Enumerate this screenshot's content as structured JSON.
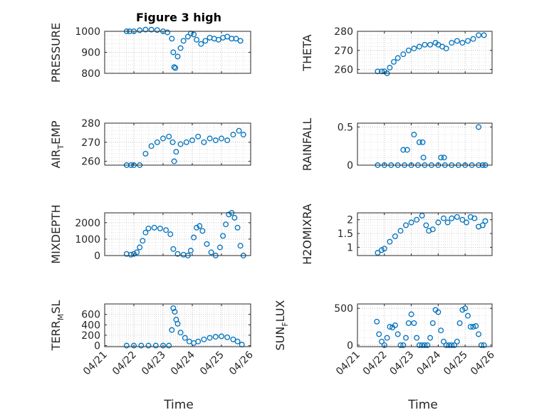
{
  "figure": {
    "title": "Figure 3 high",
    "marker_color": "#0072bd"
  },
  "chart_data": [
    {
      "type": "scatter",
      "ylabel": "PRESSURE",
      "ylim": [
        800,
        1000
      ],
      "yticks": [
        800,
        900,
        1000
      ],
      "ytick_labels": [
        "800",
        "900",
        "1000"
      ],
      "x": [
        21.75,
        21.85,
        22.0,
        22.2,
        22.4,
        22.6,
        22.8,
        23.0,
        23.15,
        23.3,
        23.35,
        23.38,
        23.42,
        23.5,
        23.6,
        23.7,
        23.85,
        23.95,
        24.05,
        24.15,
        24.3,
        24.45,
        24.6,
        24.75,
        24.9,
        25.05,
        25.2,
        25.35,
        25.5,
        25.65
      ],
      "y": [
        1000,
        1000,
        1000,
        1005,
        1008,
        1008,
        1006,
        1000,
        995,
        965,
        900,
        830,
        825,
        880,
        920,
        955,
        975,
        990,
        985,
        960,
        940,
        955,
        970,
        965,
        960,
        970,
        975,
        965,
        965,
        955
      ]
    },
    {
      "type": "scatter",
      "ylabel": "THETA",
      "ylim": [
        258,
        280
      ],
      "yticks": [
        260,
        270,
        280
      ],
      "ytick_labels": [
        "260",
        "270",
        "280"
      ],
      "x": [
        21.75,
        21.9,
        22.0,
        22.1,
        22.2,
        22.35,
        22.5,
        22.7,
        22.9,
        23.1,
        23.3,
        23.5,
        23.7,
        23.9,
        24.0,
        24.15,
        24.3,
        24.5,
        24.7,
        24.9,
        25.1,
        25.3,
        25.5,
        25.7
      ],
      "y": [
        259,
        259,
        259,
        258,
        261,
        264,
        266,
        268,
        270,
        271,
        272,
        273,
        273,
        274,
        273,
        272,
        271,
        274,
        275,
        274,
        275,
        276,
        278,
        278
      ]
    },
    {
      "type": "scatter",
      "ylabel": "AIR_TEMP",
      "ylim": [
        258,
        280
      ],
      "yticks": [
        260,
        270,
        280
      ],
      "ytick_labels": [
        "260",
        "270",
        "280"
      ],
      "x": [
        21.75,
        21.9,
        22.0,
        22.2,
        22.4,
        22.6,
        22.8,
        23.0,
        23.2,
        23.33,
        23.38,
        23.45,
        23.6,
        23.8,
        24.0,
        24.2,
        24.4,
        24.6,
        24.8,
        25.0,
        25.2,
        25.4,
        25.6,
        25.75
      ],
      "y": [
        258,
        258,
        258,
        258,
        264,
        268,
        270,
        272,
        273,
        270,
        260,
        265,
        269,
        270,
        271,
        273,
        270,
        272,
        271,
        272,
        271,
        274,
        276,
        274
      ]
    },
    {
      "type": "scatter",
      "ylabel": "RAINFALL",
      "ylim": [
        0,
        0.55
      ],
      "yticks": [
        0,
        0.5
      ],
      "ytick_labels": [
        "0",
        "0.5"
      ],
      "x": [
        21.75,
        22.0,
        22.25,
        22.5,
        22.75,
        23.0,
        23.25,
        23.5,
        23.75,
        24.0,
        24.25,
        24.5,
        24.75,
        25.0,
        25.25,
        25.5,
        25.75,
        22.7,
        22.85,
        23.1,
        23.3,
        23.42,
        23.45,
        24.1,
        24.22,
        25.5,
        25.65
      ],
      "y": [
        0,
        0,
        0,
        0,
        0,
        0,
        0,
        0,
        0,
        0,
        0,
        0,
        0,
        0,
        0,
        0,
        0,
        0.2,
        0.2,
        0.4,
        0.3,
        0.3,
        0.1,
        0.1,
        0.1,
        0.5,
        0
      ]
    },
    {
      "type": "scatter",
      "ylabel": "MIXDEPTH",
      "ylim": [
        0,
        2600
      ],
      "yticks": [
        0,
        1000,
        2000
      ],
      "ytick_labels": [
        "0",
        "1000",
        "2000"
      ],
      "x": [
        21.75,
        21.9,
        22.0,
        22.1,
        22.2,
        22.3,
        22.4,
        22.5,
        22.7,
        22.9,
        23.1,
        23.25,
        23.35,
        23.5,
        23.7,
        23.85,
        23.95,
        24.05,
        24.15,
        24.25,
        24.35,
        24.5,
        24.65,
        24.8,
        24.95,
        25.05,
        25.15,
        25.25,
        25.35,
        25.45,
        25.55,
        25.65,
        25.75
      ],
      "y": [
        100,
        50,
        100,
        200,
        500,
        900,
        1400,
        1650,
        1700,
        1650,
        1550,
        1300,
        400,
        100,
        50,
        0,
        300,
        1100,
        1700,
        1800,
        1500,
        700,
        200,
        0,
        500,
        1200,
        1900,
        2500,
        2600,
        2300,
        1700,
        600,
        0
      ]
    },
    {
      "type": "scatter",
      "ylabel": "H2OMIXRA",
      "ylim": [
        0.7,
        2.25
      ],
      "yticks": [
        1,
        1.5,
        2
      ],
      "ytick_labels": [
        "1",
        "1.5",
        "2"
      ],
      "x": [
        21.75,
        21.9,
        22.0,
        22.2,
        22.4,
        22.6,
        22.8,
        23.0,
        23.2,
        23.4,
        23.55,
        23.65,
        23.8,
        24.0,
        24.2,
        24.35,
        24.5,
        24.7,
        24.9,
        25.05,
        25.2,
        25.35,
        25.5,
        25.65,
        25.75
      ],
      "y": [
        0.8,
        0.9,
        0.95,
        1.2,
        1.4,
        1.6,
        1.8,
        1.9,
        2.0,
        2.15,
        1.8,
        1.6,
        1.65,
        1.9,
        2.05,
        1.9,
        2.05,
        2.1,
        2.0,
        1.9,
        2.1,
        2.05,
        1.75,
        1.8,
        1.95
      ]
    },
    {
      "type": "scatter",
      "ylabel": "TERR_MSL",
      "ylim": [
        -20,
        800
      ],
      "yticks": [
        0,
        200,
        400,
        600
      ],
      "ytick_labels": [
        "0",
        "200",
        "400",
        "600"
      ],
      "x": [
        21.75,
        22.0,
        22.25,
        22.5,
        22.75,
        23.0,
        23.2,
        23.3,
        23.35,
        23.4,
        23.45,
        23.5,
        23.6,
        23.75,
        23.9,
        24.05,
        24.2,
        24.4,
        24.6,
        24.8,
        25.0,
        25.2,
        25.4,
        25.55,
        25.7
      ],
      "y": [
        0,
        0,
        0,
        0,
        0,
        0,
        0,
        300,
        720,
        650,
        500,
        420,
        250,
        150,
        80,
        50,
        80,
        120,
        150,
        170,
        180,
        160,
        120,
        80,
        20
      ]
    },
    {
      "type": "scatter",
      "ylabel": "SUN_FLUX",
      "ylim": [
        -20,
        560
      ],
      "yticks": [
        0,
        500
      ],
      "ytick_labels": [
        "0",
        "500"
      ],
      "x": [
        21.72,
        21.8,
        21.9,
        22.0,
        22.1,
        22.2,
        22.3,
        22.4,
        22.5,
        22.6,
        22.7,
        22.8,
        22.9,
        23.0,
        23.1,
        23.2,
        23.3,
        23.4,
        23.5,
        23.6,
        23.7,
        23.8,
        23.9,
        24.0,
        24.1,
        24.2,
        24.3,
        24.4,
        24.5,
        24.6,
        24.7,
        24.8,
        24.9,
        25.0,
        25.1,
        25.2,
        25.3,
        25.4,
        25.5,
        25.6,
        25.7
      ],
      "y": [
        320,
        150,
        50,
        0,
        100,
        250,
        240,
        270,
        150,
        0,
        0,
        100,
        300,
        420,
        300,
        100,
        0,
        0,
        0,
        0,
        100,
        300,
        480,
        450,
        200,
        50,
        0,
        0,
        0,
        0,
        50,
        300,
        480,
        500,
        400,
        250,
        250,
        260,
        150,
        0,
        0
      ]
    }
  ],
  "x_axis": {
    "ticks": [
      21,
      22,
      23,
      24,
      25,
      26
    ],
    "tick_labels": [
      "04/21",
      "04/22",
      "04/23",
      "04/24",
      "04/25",
      "04/26"
    ],
    "label": "Time"
  },
  "labels": {
    "pressure": "PRESSURE",
    "theta": "THETA",
    "rainfall": "RAINFALL",
    "mixdepth": "MIXDEPTH",
    "h2omixra": "H2OMIXRA",
    "air_a": "AIR",
    "air_sub": "T",
    "air_b": "EMP",
    "terr_a": "TERR",
    "terr_sub": "M",
    "terr_b": "SL",
    "sun_a": "SUN",
    "sun_sub": "F",
    "sun_b": "LUX",
    "xlabel": "Time"
  }
}
